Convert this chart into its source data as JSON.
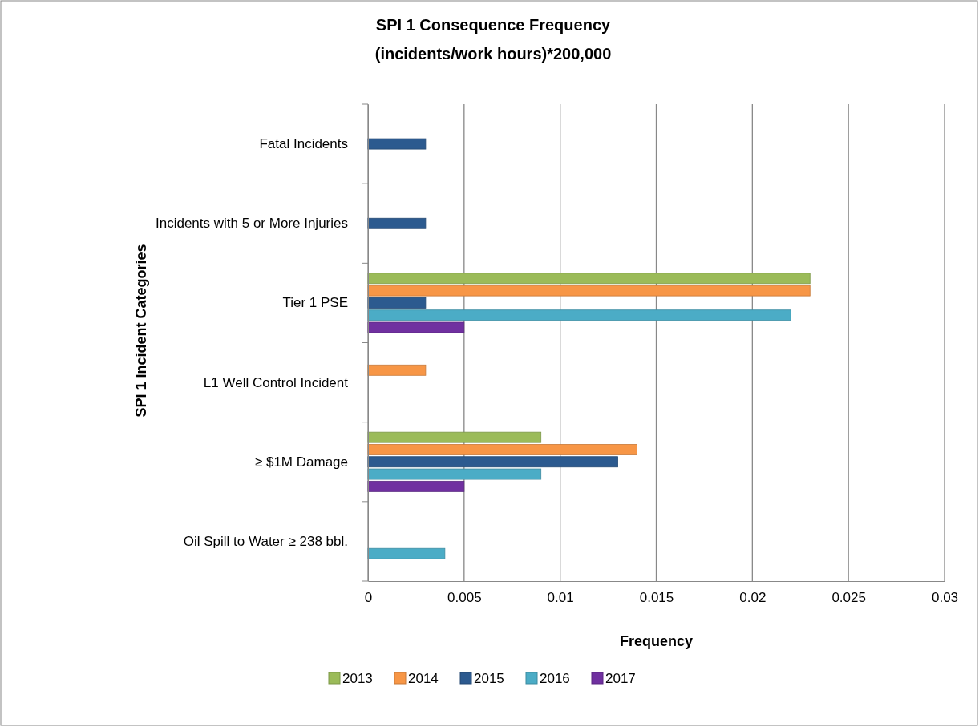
{
  "chart_data": {
    "type": "bar",
    "orientation": "horizontal",
    "title": "SPI 1 Consequence Frequency\n(incidents/work hours)*200,000",
    "xlabel": "Frequency",
    "ylabel": "SPI 1 Incident Categories",
    "categories": [
      "Fatal Incidents",
      "Incidents with 5 or More Injuries",
      "Tier 1 PSE",
      "L1 Well Control Incident",
      "≥ $1M Damage",
      "Oil Spill to Water ≥ 238 bbl."
    ],
    "series": [
      {
        "name": "2013",
        "color": "#9bbb59",
        "values": [
          null,
          null,
          0.023,
          null,
          0.009,
          null
        ]
      },
      {
        "name": "2014",
        "color": "#f79646",
        "values": [
          null,
          null,
          0.023,
          0.003,
          0.014,
          null
        ]
      },
      {
        "name": "2015",
        "color": "#2c5a8f",
        "values": [
          0.003,
          0.003,
          0.003,
          null,
          0.013,
          null
        ]
      },
      {
        "name": "2016",
        "color": "#4bacc6",
        "values": [
          null,
          null,
          0.022,
          null,
          0.009,
          0.004
        ]
      },
      {
        "name": "2017",
        "color": "#7030a0",
        "values": [
          null,
          null,
          0.005,
          null,
          0.005,
          null
        ]
      }
    ],
    "xlim": [
      0,
      0.03
    ],
    "xticks": [
      0,
      0.005,
      0.01,
      0.015,
      0.02,
      0.025,
      0.03
    ],
    "grid": "x",
    "legend": "bottom"
  }
}
